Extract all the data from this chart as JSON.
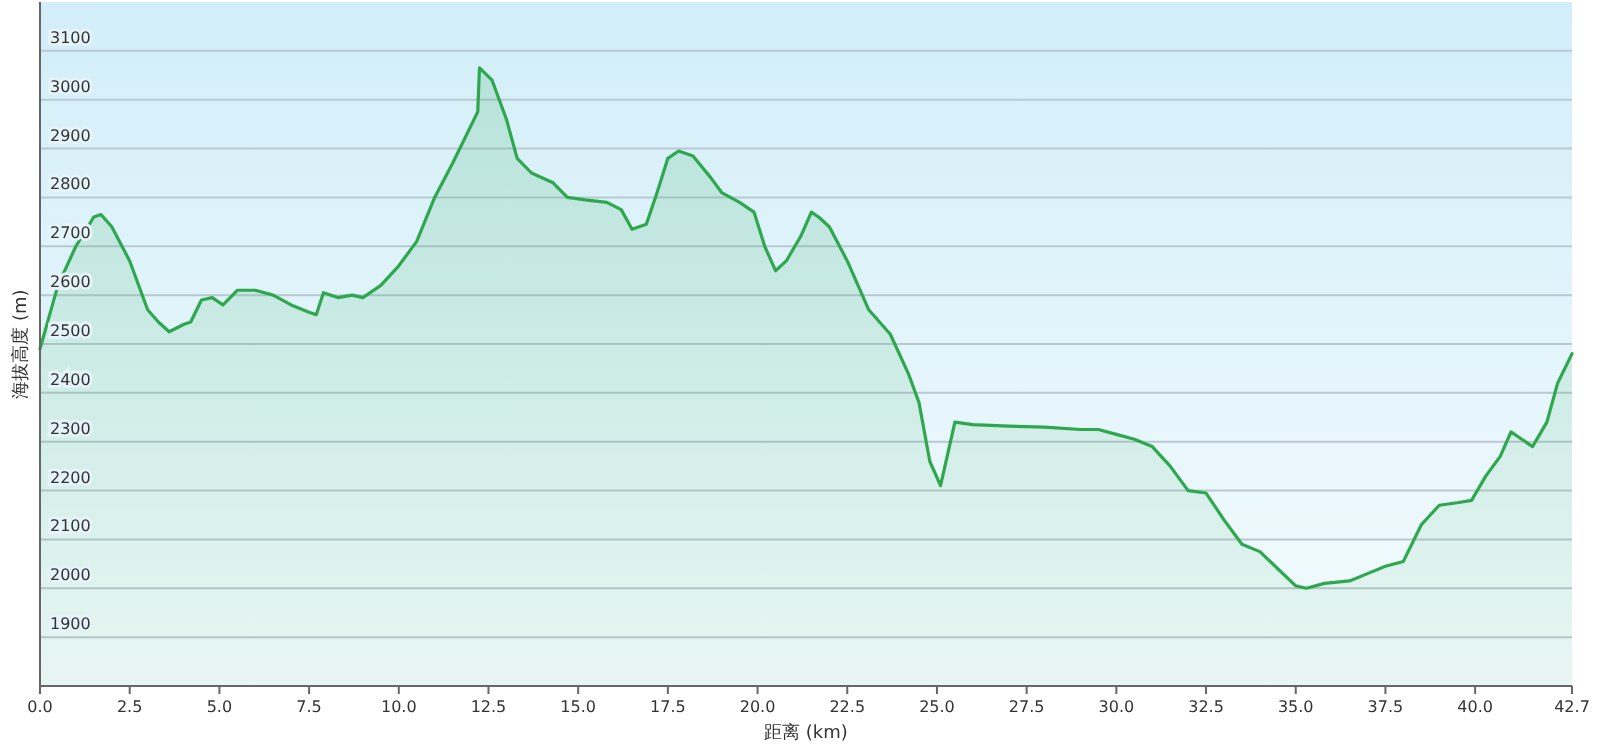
{
  "chart_data": {
    "type": "area",
    "xlabel": "距离 (km)",
    "ylabel": "海拔高度 (m)",
    "color": "#2ea84e",
    "grid": "y",
    "xlim": [
      0,
      42.7
    ],
    "ylim": [
      1800,
      3200
    ],
    "xticks": [
      {
        "value": 0,
        "label": "0.0"
      },
      {
        "value": 2.5,
        "label": "2.5"
      },
      {
        "value": 5,
        "label": "5.0"
      },
      {
        "value": 7.5,
        "label": "7.5"
      },
      {
        "value": 10,
        "label": "10.0"
      },
      {
        "value": 12.5,
        "label": "12.5"
      },
      {
        "value": 15,
        "label": "15.0"
      },
      {
        "value": 17.5,
        "label": "17.5"
      },
      {
        "value": 20,
        "label": "20.0"
      },
      {
        "value": 22.5,
        "label": "22.5"
      },
      {
        "value": 25,
        "label": "25.0"
      },
      {
        "value": 27.5,
        "label": "27.5"
      },
      {
        "value": 30,
        "label": "30.0"
      },
      {
        "value": 32.5,
        "label": "32.5"
      },
      {
        "value": 35,
        "label": "35.0"
      },
      {
        "value": 37.5,
        "label": "37.5"
      },
      {
        "value": 40,
        "label": "40.0"
      },
      {
        "value": 42.7,
        "label": "42.7"
      }
    ],
    "yticks": [
      1900,
      2000,
      2100,
      2200,
      2300,
      2400,
      2500,
      2600,
      2700,
      2800,
      2900,
      3000,
      3100
    ],
    "x": [
      0,
      0.5,
      1.0,
      1.5,
      1.7,
      2.0,
      2.5,
      3.0,
      3.3,
      3.6,
      4.0,
      4.2,
      4.5,
      4.8,
      5.1,
      5.5,
      6.0,
      6.5,
      7.0,
      7.5,
      7.7,
      7.9,
      8.3,
      8.7,
      9.0,
      9.5,
      10.0,
      10.5,
      11.0,
      11.5,
      12.2,
      12.25,
      12.6,
      13.0,
      13.3,
      13.7,
      14.3,
      14.7,
      15.2,
      15.8,
      16.2,
      16.5,
      16.9,
      17.2,
      17.5,
      17.8,
      18.2,
      18.7,
      19.0,
      19.5,
      19.9,
      20.2,
      20.5,
      20.8,
      21.2,
      21.5,
      21.7,
      22.0,
      22.5,
      22.8,
      23.1,
      23.7,
      24.2,
      24.5,
      24.8,
      25.1,
      25.5,
      26.0,
      27.0,
      28.0,
      29.0,
      29.5,
      30.0,
      30.5,
      31.0,
      31.5,
      32.0,
      32.5,
      33.0,
      33.5,
      34.0,
      34.5,
      35.0,
      35.3,
      35.8,
      36.5,
      37.0,
      37.5,
      38.0,
      38.5,
      39.0,
      39.5,
      39.9,
      40.3,
      40.7,
      41.0,
      41.3,
      41.6,
      42.0,
      42.3,
      42.7
    ],
    "values": [
      2490,
      2620,
      2700,
      2760,
      2765,
      2740,
      2670,
      2570,
      2545,
      2525,
      2540,
      2545,
      2590,
      2595,
      2580,
      2610,
      2610,
      2600,
      2580,
      2565,
      2560,
      2605,
      2595,
      2600,
      2595,
      2620,
      2660,
      2710,
      2800,
      2870,
      2975,
      3065,
      3040,
      2960,
      2880,
      2850,
      2830,
      2800,
      2795,
      2790,
      2775,
      2735,
      2745,
      2810,
      2880,
      2895,
      2885,
      2840,
      2810,
      2790,
      2770,
      2700,
      2650,
      2670,
      2720,
      2770,
      2760,
      2740,
      2670,
      2620,
      2570,
      2520,
      2440,
      2380,
      2260,
      2210,
      2340,
      2335,
      2332,
      2330,
      2325,
      2325,
      2315,
      2305,
      2290,
      2250,
      2200,
      2195,
      2140,
      2090,
      2075,
      2040,
      2005,
      2000,
      2010,
      2015,
      2030,
      2045,
      2055,
      2130,
      2170,
      2175,
      2180,
      2230,
      2270,
      2320,
      2305,
      2290,
      2340,
      2420,
      2480
    ]
  }
}
